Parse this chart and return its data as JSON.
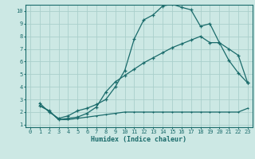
{
  "xlabel": "Humidex (Indice chaleur)",
  "bg_color": "#cce8e4",
  "grid_color": "#aacfcb",
  "line_color": "#1a6b6b",
  "xlim": [
    -0.5,
    23.5
  ],
  "ylim": [
    0.8,
    10.5
  ],
  "xticks": [
    0,
    1,
    2,
    3,
    4,
    5,
    6,
    7,
    8,
    9,
    10,
    11,
    12,
    13,
    14,
    15,
    16,
    17,
    18,
    19,
    20,
    21,
    22,
    23
  ],
  "yticks": [
    1,
    2,
    3,
    4,
    5,
    6,
    7,
    8,
    9,
    10
  ],
  "curve1_x": [
    1,
    2,
    3,
    4,
    5,
    6,
    7,
    8,
    9,
    10,
    11,
    12,
    13,
    14,
    15,
    16,
    17,
    18,
    19,
    20,
    21,
    22,
    23
  ],
  "curve1_y": [
    2.7,
    2.0,
    1.5,
    1.7,
    2.1,
    2.3,
    2.6,
    3.0,
    4.0,
    5.3,
    7.8,
    9.3,
    9.7,
    10.4,
    10.55,
    10.3,
    10.1,
    8.8,
    9.0,
    7.5,
    6.1,
    5.1,
    4.3
  ],
  "curve2_x": [
    1,
    2,
    3,
    4,
    5,
    6,
    7,
    8,
    9,
    10,
    11,
    12,
    13,
    14,
    15,
    16,
    17,
    18,
    19,
    20,
    21,
    22,
    23
  ],
  "curve2_y": [
    2.5,
    2.1,
    1.4,
    1.5,
    1.6,
    1.9,
    2.4,
    3.6,
    4.4,
    4.9,
    5.4,
    5.9,
    6.3,
    6.7,
    7.1,
    7.4,
    7.7,
    8.0,
    7.5,
    7.5,
    7.0,
    6.5,
    4.3
  ],
  "curve3_x": [
    1,
    2,
    3,
    4,
    5,
    6,
    7,
    8,
    9,
    10,
    11,
    12,
    13,
    14,
    15,
    16,
    17,
    18,
    19,
    20,
    21,
    22,
    23
  ],
  "curve3_y": [
    2.5,
    2.1,
    1.4,
    1.4,
    1.5,
    1.6,
    1.7,
    1.8,
    1.9,
    2.0,
    2.0,
    2.0,
    2.0,
    2.0,
    2.0,
    2.0,
    2.0,
    2.0,
    2.0,
    2.0,
    2.0,
    2.0,
    2.3
  ]
}
